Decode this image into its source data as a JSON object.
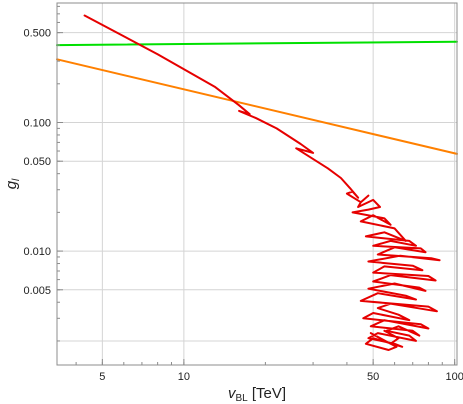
{
  "chart_data": {
    "type": "line",
    "title": "",
    "xlabel": {
      "main": "v",
      "sub": "BL",
      "unit": " [TeV]"
    },
    "ylabel": {
      "main": "g",
      "sub": "l"
    },
    "x_scale": "log",
    "y_scale": "log",
    "xlim": [
      3.4,
      102
    ],
    "ylim": [
      0.0013,
      0.85
    ],
    "grid": true,
    "legend": "none",
    "x_ticks": [
      {
        "value": 5,
        "label": "5"
      },
      {
        "value": 10,
        "label": "10"
      },
      {
        "value": 50,
        "label": "50"
      },
      {
        "value": 100,
        "label": "100"
      }
    ],
    "y_ticks": [
      {
        "value": 0.5,
        "label": "0.500"
      },
      {
        "value": 0.1,
        "label": "0.100"
      },
      {
        "value": 0.05,
        "label": "0.050"
      },
      {
        "value": 0.01,
        "label": "0.010"
      },
      {
        "value": 0.005,
        "label": "0.005"
      }
    ],
    "x_grid": [
      5,
      10,
      50,
      100
    ],
    "y_grid": [
      0.5,
      0.1,
      0.05,
      0.01,
      0.005,
      0.002
    ],
    "series": [
      {
        "color": "#00e000",
        "x": [
          3.4,
          102
        ],
        "y": [
          0.4,
          0.425
        ]
      },
      {
        "color": "#ff8000",
        "x": [
          3.4,
          102
        ],
        "y": [
          0.31,
          0.057
        ]
      },
      {
        "color": "#e60000",
        "x": [
          4.3,
          8.0,
          13,
          16,
          17.5,
          16,
          18.5,
          22,
          27,
          30,
          26,
          34,
          38,
          41,
          44,
          42,
          40,
          45,
          48,
          45,
          44,
          50,
          53,
          48,
          42,
          55,
          58,
          50,
          45,
          60,
          66,
          55,
          47,
          68,
          72,
          58,
          50,
          75,
          78,
          60,
          52,
          82,
          88,
          63,
          48,
          70,
          76,
          55,
          50,
          80,
          85,
          58,
          50,
          74,
          78,
          60,
          48,
          66,
          72,
          52,
          45,
          80,
          86,
          58,
          52,
          62,
          68,
          50,
          46,
          75,
          80,
          55,
          49,
          70,
          74,
          62,
          56,
          68,
          72,
          52,
          48,
          60,
          64,
          50,
          47,
          57,
          61,
          53,
          49,
          58,
          62,
          55
        ],
        "y": [
          0.68,
          0.34,
          0.19,
          0.136,
          0.116,
          0.123,
          0.108,
          0.09,
          0.068,
          0.058,
          0.063,
          0.044,
          0.037,
          0.031,
          0.026,
          0.029,
          0.028,
          0.024,
          0.027,
          0.024,
          0.022,
          0.025,
          0.022,
          0.021,
          0.02,
          0.018,
          0.016,
          0.019,
          0.017,
          0.015,
          0.012,
          0.014,
          0.013,
          0.012,
          0.011,
          0.012,
          0.011,
          0.0105,
          0.0098,
          0.0107,
          0.0094,
          0.0088,
          0.0085,
          0.0092,
          0.0083,
          0.0077,
          0.0071,
          0.0076,
          0.0068,
          0.0064,
          0.0059,
          0.0065,
          0.0058,
          0.0052,
          0.0049,
          0.0056,
          0.0051,
          0.0045,
          0.0042,
          0.0047,
          0.0041,
          0.0037,
          0.0034,
          0.0039,
          0.0036,
          0.0032,
          0.0029,
          0.0033,
          0.003,
          0.0027,
          0.0025,
          0.0029,
          0.0026,
          0.0024,
          0.0022,
          0.0026,
          0.0024,
          0.0022,
          0.002,
          0.0023,
          0.0021,
          0.0019,
          0.0018,
          0.0021,
          0.0019,
          0.0017,
          0.0018,
          0.0021,
          0.0023,
          0.0019,
          0.0021,
          0.0024
        ]
      }
    ]
  }
}
